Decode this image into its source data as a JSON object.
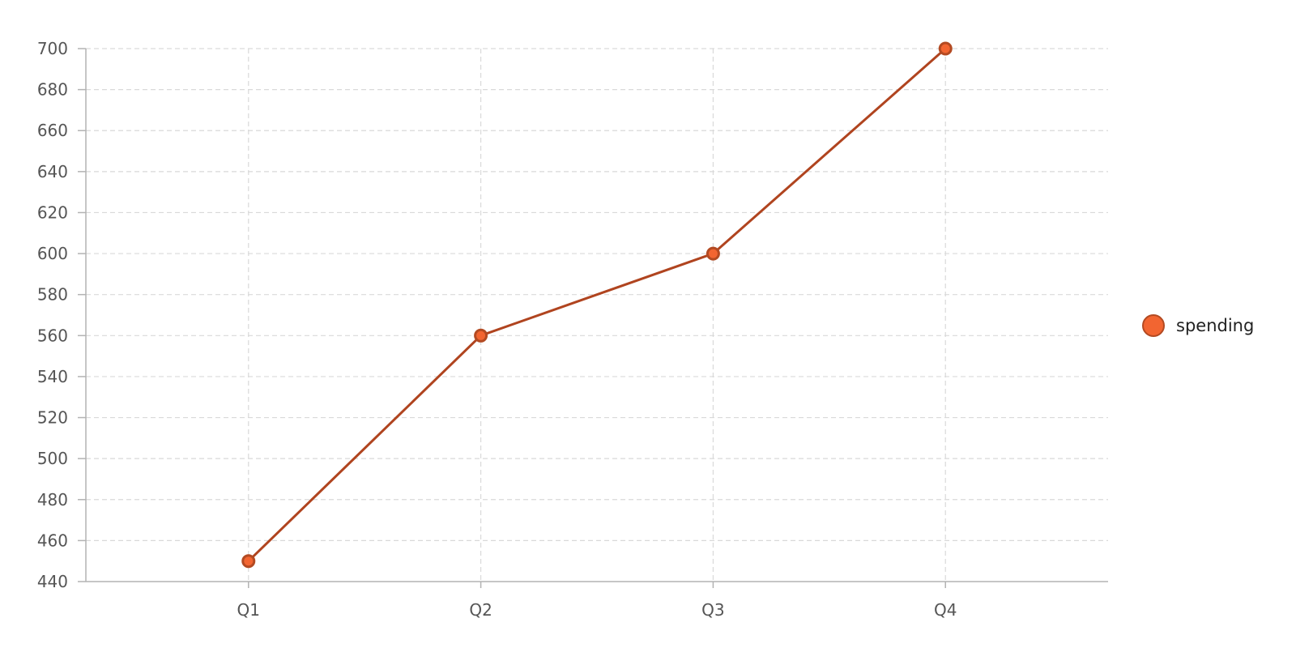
{
  "chart_data": {
    "type": "line",
    "categories": [
      "Q1",
      "Q2",
      "Q3",
      "Q4"
    ],
    "series": [
      {
        "name": "spending",
        "values": [
          450,
          560,
          600,
          700
        ]
      }
    ],
    "ylim": [
      440,
      700
    ],
    "yticks": [
      440,
      460,
      480,
      500,
      520,
      540,
      560,
      580,
      600,
      620,
      640,
      660,
      680,
      700
    ],
    "grid": true,
    "legend_position": "right",
    "colors": {
      "line": "#b0441f",
      "point_fill": "#f26531",
      "point_stroke": "#b34a22",
      "legend_marker": "#f26531"
    }
  }
}
